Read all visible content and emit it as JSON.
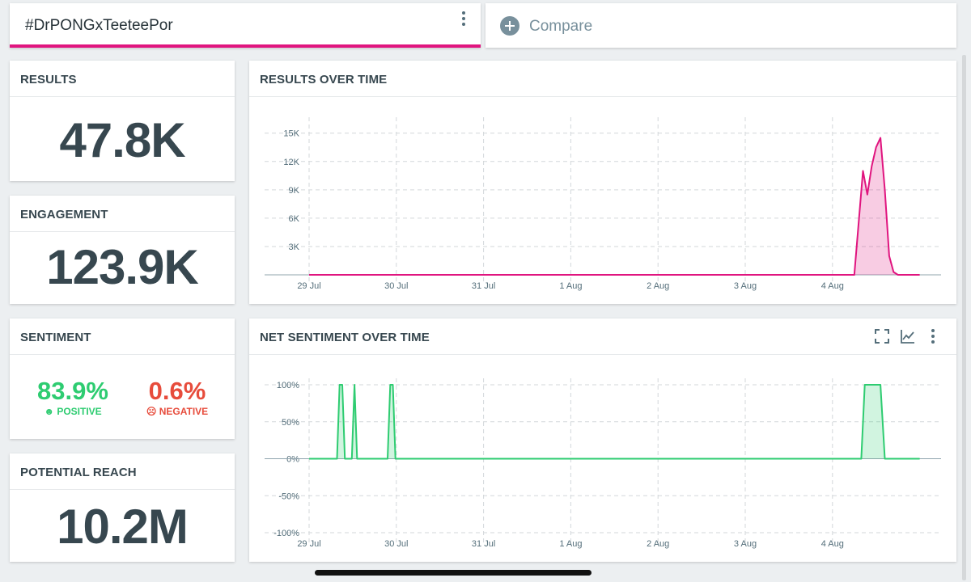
{
  "search": {
    "query": "#DrPONGxTeeteePor"
  },
  "compare": {
    "label": "Compare"
  },
  "metrics": {
    "results": {
      "title": "RESULTS",
      "value": "47.8K"
    },
    "engagement": {
      "title": "ENGAGEMENT",
      "value": "123.9K"
    },
    "sentiment": {
      "title": "SENTIMENT",
      "positive_value": "83.9%",
      "positive_label": "POSITIVE",
      "negative_value": "0.6%",
      "negative_label": "NEGATIVE"
    },
    "reach": {
      "title": "POTENTIAL REACH",
      "value": "10.2M"
    }
  },
  "colors": {
    "accent": "#e0157f",
    "positive": "#2ecc71",
    "negative": "#e74c3c",
    "text": "#37474f"
  },
  "chart_data": [
    {
      "type": "area",
      "title": "RESULTS OVER TIME",
      "x_labels": [
        "29 Jul",
        "30 Jul",
        "31 Jul",
        "1 Aug",
        "2 Aug",
        "3 Aug",
        "4 Aug"
      ],
      "y_ticks": [
        "3K",
        "6K",
        "9K",
        "12K",
        "15K"
      ],
      "ylim": [
        0,
        16000
      ],
      "color": "#e0157f",
      "series": [
        {
          "x": [
            0,
            6.0,
            6.25,
            6.35,
            6.4,
            6.45,
            6.5,
            6.55,
            6.6,
            6.65,
            6.7,
            6.75,
            6.85,
            7.0
          ],
          "values": [
            0,
            0,
            0,
            11000,
            8500,
            11500,
            13500,
            14500,
            9000,
            2000,
            300,
            0,
            0,
            0
          ]
        }
      ],
      "grid": true
    },
    {
      "type": "area",
      "title": "NET SENTIMENT OVER TIME",
      "x_labels": [
        "29 Jul",
        "30 Jul",
        "31 Jul",
        "1 Aug",
        "2 Aug",
        "3 Aug",
        "4 Aug"
      ],
      "y_ticks": [
        "100%",
        "50%",
        "0%",
        "-50%",
        "-100%"
      ],
      "ylim": [
        -100,
        100
      ],
      "color": "#2ecc71",
      "series": [
        {
          "x": [
            0,
            0.32,
            0.35,
            0.38,
            0.41,
            0.49,
            0.52,
            0.55,
            0.9,
            0.93,
            0.96,
            0.99,
            6.33,
            6.37,
            6.4,
            6.5,
            6.55,
            6.6,
            7.0
          ],
          "values": [
            0,
            0,
            100,
            100,
            0,
            0,
            100,
            0,
            0,
            100,
            100,
            0,
            0,
            100,
            100,
            100,
            100,
            0,
            0
          ]
        }
      ],
      "grid": true
    }
  ],
  "icons": [
    "kebab-menu-icon",
    "plus-circle-icon",
    "fullscreen-icon",
    "line-chart-icon"
  ]
}
